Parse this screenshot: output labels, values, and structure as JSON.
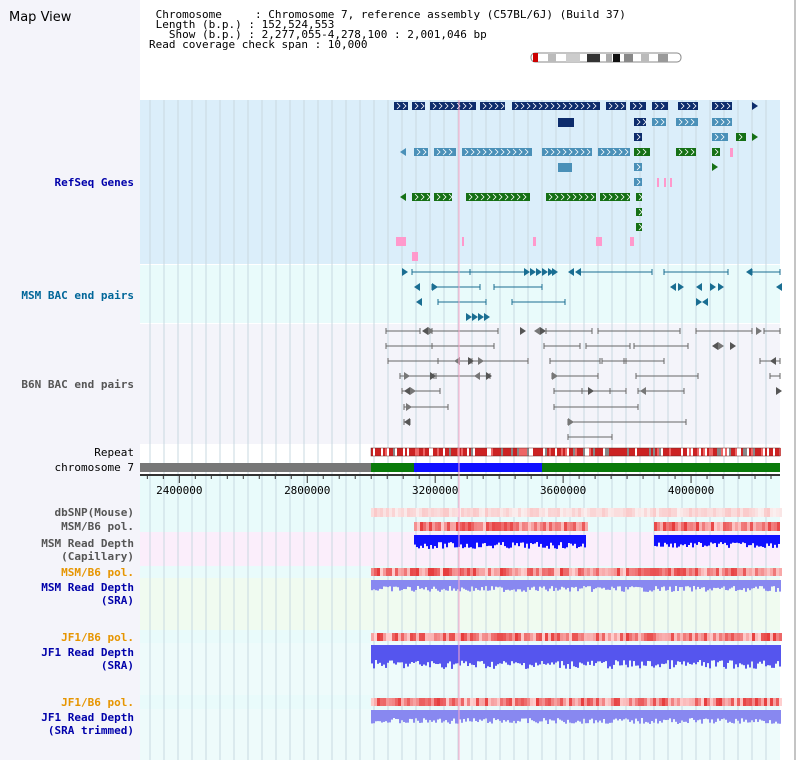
{
  "header": {
    "title": "Map View",
    "info_lines": [
      " Chromosome     : Chromosome 7, reference assembly (C57BL/6J) (Build 37)",
      " Length (b.p.) : 152,524,553",
      "   Show (b.p.) : 2,277,055-4,278,100 : 2,001,046 bp",
      "Read coverage check span : 10,000"
    ]
  },
  "tracks": {
    "refseq": {
      "label": "RefSeq Genes",
      "color": "#0000aa"
    },
    "msm_bac": {
      "label": "MSM BAC end pairs",
      "color": "#006699"
    },
    "b6n_bac": {
      "label": "B6N BAC end pairs",
      "color": "#555555"
    },
    "repeat": {
      "label": "Repeat",
      "color": "#000000"
    },
    "chromosome": {
      "label": "chromosome 7",
      "color": "#000000"
    },
    "dbsnp": {
      "label": "dbSNP(Mouse)",
      "color": "#555555"
    },
    "msm_b6_pol_1": {
      "label": "MSM/B6 pol.",
      "color": "#555555"
    },
    "msm_depth_cap": {
      "label": "MSM Read Depth\n(Capillary)",
      "color": "#555555"
    },
    "msm_b6_pol_2": {
      "label": "MSM/B6 pol.",
      "color": "#e69500"
    },
    "msm_depth_sra": {
      "label": "MSM Read Depth\n(SRA)",
      "color": "#0000aa"
    },
    "jf1_b6_pol_1": {
      "label": "JF1/B6 pol.",
      "color": "#e69500"
    },
    "jf1_depth_sra": {
      "label": "JF1 Read Depth\n(SRA)",
      "color": "#0000aa"
    },
    "jf1_b6_pol_2": {
      "label": "JF1/B6 pol.",
      "color": "#e69500"
    },
    "jf1_depth_trim": {
      "label": "JF1 Read Depth\n(SRA trimmed)",
      "color": "#0000aa"
    }
  },
  "ruler": {
    "ticks": [
      "2400000",
      "2800000",
      "3200000",
      "3600000",
      "4000000"
    ],
    "range": [
      2277055,
      4278100
    ]
  },
  "colors": {
    "refseq_bg": "#dbeefa",
    "msm_bac_bg": "#e9fbfb",
    "b6n_bac_bg": "#f4f4fa",
    "refseq_navy": "#0d2c6c",
    "refseq_teal": "#4a90b8",
    "refseq_green": "#157015",
    "refseq_pink": "#ff99cc",
    "chrom_gray": "#777777",
    "chrom_green": "#0a7a0a",
    "chrom_blue": "#1010ff",
    "depth_blue": "#5555ee",
    "depth_light": "#8888f0"
  }
}
